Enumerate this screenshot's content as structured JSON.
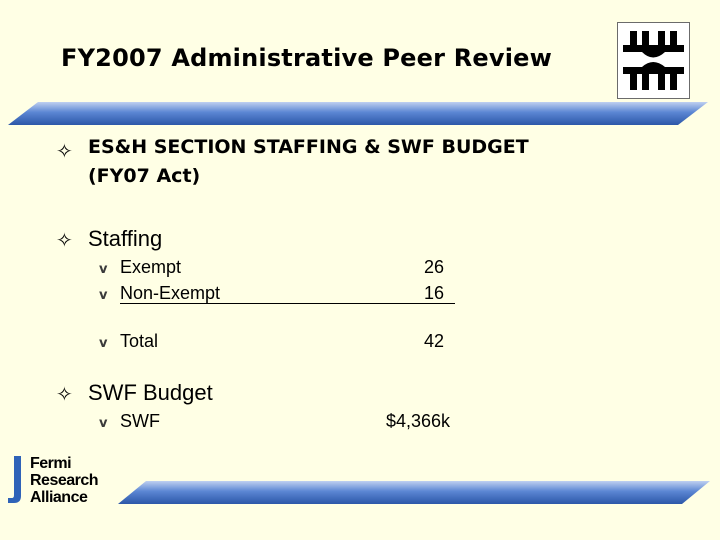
{
  "slide": {
    "title": "FY2007 Administrative Peer Review",
    "bullets": [
      {
        "text_line1": "ES&H SECTION STAFFING & SWF BUDGET",
        "text_line2": "(FY07 Act)"
      },
      {
        "text": "Staffing"
      },
      {
        "text": "SWF Budget"
      }
    ],
    "bullet_glyph": "✧",
    "sub_glyph": "v",
    "staffing_rows": [
      {
        "label": "Exempt",
        "value": "26"
      },
      {
        "label": "Non-Exempt",
        "value": "16"
      },
      {
        "label": "Total",
        "value": "42"
      }
    ],
    "budget_rows": [
      {
        "label": "SWF",
        "value": "$4,366k"
      }
    ]
  },
  "branding": {
    "footer_logo_lines": [
      "Fermi",
      "Research",
      "Alliance"
    ],
    "top_logo_icon": "fermilab-logo-icon"
  },
  "colors": {
    "background": "#FFFFE5",
    "accent_bar": "#3F6FC4",
    "accent_bar_light": "#BFD0F0",
    "logo_blue": "#2F63B8"
  }
}
